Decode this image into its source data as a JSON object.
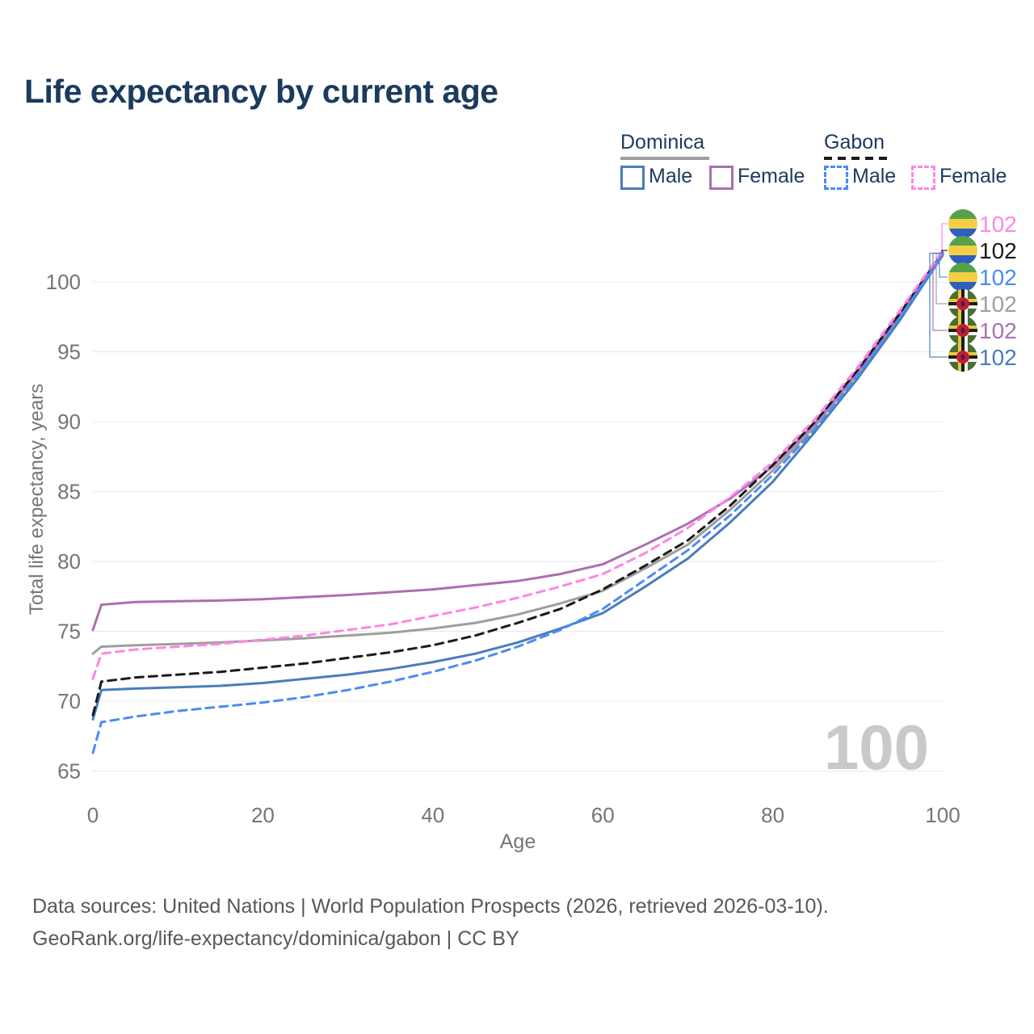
{
  "title": "Life expectancy by current age",
  "legend": {
    "groups": [
      {
        "name": "Dominica",
        "line_style": "solid",
        "underline_color": "#9e9e9e",
        "items": [
          {
            "label": "Male",
            "color": "#4a7cbd",
            "dashed": false
          },
          {
            "label": "Female",
            "color": "#ab6fb0",
            "dashed": false
          }
        ]
      },
      {
        "name": "Gabon",
        "line_style": "dashed",
        "underline_color": "#1a1a1a",
        "items": [
          {
            "label": "Male",
            "color": "#4b8bf5",
            "dashed": true
          },
          {
            "label": "Female",
            "color": "#ff85e6",
            "dashed": true
          }
        ]
      }
    ]
  },
  "watermark": "100",
  "footer": {
    "line1": "Data sources: United Nations | World Population Prospects (2026, retrieved 2026-03-10).",
    "line2": "GeoRank.org/life-expectancy/dominica/gabon | CC BY"
  },
  "chart_data": {
    "type": "line",
    "title": "Life expectancy by current age",
    "xlabel": "Age",
    "ylabel": "Total life expectancy, years",
    "xlim": [
      0,
      100
    ],
    "ylim": [
      65,
      103
    ],
    "x_ticks": [
      0,
      20,
      40,
      60,
      80,
      100
    ],
    "y_ticks": [
      65,
      70,
      75,
      80,
      85,
      90,
      95,
      100
    ],
    "grid": "horizontal",
    "grid_color": "#e8e8e8",
    "tick_color": "#757575",
    "x": [
      0,
      1,
      5,
      10,
      15,
      20,
      25,
      30,
      35,
      40,
      45,
      50,
      55,
      60,
      65,
      70,
      75,
      80,
      85,
      90,
      95,
      100
    ],
    "series": [
      {
        "name": "Dominica",
        "country": "Dominica",
        "sex": "all",
        "color": "#9e9e9e",
        "dashed": false,
        "values": [
          73.4,
          73.9,
          74.0,
          74.1,
          74.2,
          74.35,
          74.5,
          74.7,
          74.9,
          75.2,
          75.6,
          76.2,
          77.0,
          77.9,
          79.5,
          81.2,
          83.7,
          86.5,
          89.7,
          93.4,
          97.5,
          102.0
        ]
      },
      {
        "name": "Dominica Male",
        "country": "Dominica",
        "sex": "male",
        "color": "#4a7cbd",
        "dashed": false,
        "values": [
          68.7,
          70.8,
          70.9,
          71.0,
          71.1,
          71.3,
          71.6,
          71.9,
          72.3,
          72.8,
          73.4,
          74.2,
          75.2,
          76.3,
          78.2,
          80.2,
          82.8,
          85.7,
          89.3,
          93.1,
          97.3,
          101.9
        ]
      },
      {
        "name": "Dominica Female",
        "country": "Dominica",
        "sex": "female",
        "color": "#ab6fb0",
        "dashed": false,
        "values": [
          75.1,
          76.9,
          77.1,
          77.15,
          77.2,
          77.3,
          77.45,
          77.6,
          77.8,
          78.0,
          78.3,
          78.6,
          79.1,
          79.8,
          81.2,
          82.7,
          84.5,
          86.8,
          89.9,
          93.6,
          97.7,
          102.0
        ]
      },
      {
        "name": "Gabon",
        "country": "Gabon",
        "sex": "all",
        "color": "#1a1a1a",
        "dashed": true,
        "values": [
          69.0,
          71.4,
          71.7,
          71.9,
          72.1,
          72.4,
          72.7,
          73.1,
          73.5,
          74.0,
          74.7,
          75.6,
          76.6,
          78.0,
          79.7,
          81.5,
          84.0,
          86.9,
          90.0,
          93.7,
          97.8,
          102.1
        ]
      },
      {
        "name": "Gabon Male",
        "country": "Gabon",
        "sex": "male",
        "color": "#4b8bf5",
        "dashed": true,
        "values": [
          66.3,
          68.5,
          68.9,
          69.3,
          69.6,
          69.9,
          70.3,
          70.8,
          71.4,
          72.1,
          72.9,
          73.9,
          75.1,
          76.6,
          78.7,
          80.8,
          83.3,
          86.2,
          89.5,
          93.3,
          97.5,
          102.0
        ]
      },
      {
        "name": "Gabon Female",
        "country": "Gabon",
        "sex": "female",
        "color": "#ff85e6",
        "dashed": true,
        "values": [
          71.6,
          73.4,
          73.7,
          73.9,
          74.1,
          74.4,
          74.7,
          75.1,
          75.5,
          76.1,
          76.7,
          77.4,
          78.2,
          79.1,
          80.6,
          82.4,
          84.6,
          87.1,
          90.2,
          93.9,
          98.0,
          102.2
        ]
      }
    ],
    "end_labels": [
      {
        "series": "Gabon Female",
        "flag": "gabon",
        "value": "102",
        "color": "#ff85e6"
      },
      {
        "series": "Gabon",
        "flag": "gabon",
        "value": "102",
        "color": "#1a1a1a"
      },
      {
        "series": "Gabon Male",
        "flag": "gabon",
        "value": "102",
        "color": "#4b8bf5"
      },
      {
        "series": "Dominica",
        "flag": "dominica",
        "value": "102",
        "color": "#9e9e9e"
      },
      {
        "series": "Dominica Female",
        "flag": "dominica",
        "value": "102",
        "color": "#ab6fb0"
      },
      {
        "series": "Dominica Male",
        "flag": "dominica",
        "value": "102",
        "color": "#4a7cbd"
      }
    ],
    "flag_colors": {
      "gabon": {
        "green": "#58a14b",
        "yellow": "#f3cf45",
        "blue": "#2e5fbe"
      },
      "dominica": {
        "field": "#4a6e2f",
        "cross_yellow": "#e8c93f",
        "cross_black": "#1c1c1c",
        "cross_white": "#f4f4f4",
        "disc_red": "#c41c33",
        "parrot": "#3c2348"
      }
    },
    "watermark": "100",
    "legend_position": "top-right"
  }
}
